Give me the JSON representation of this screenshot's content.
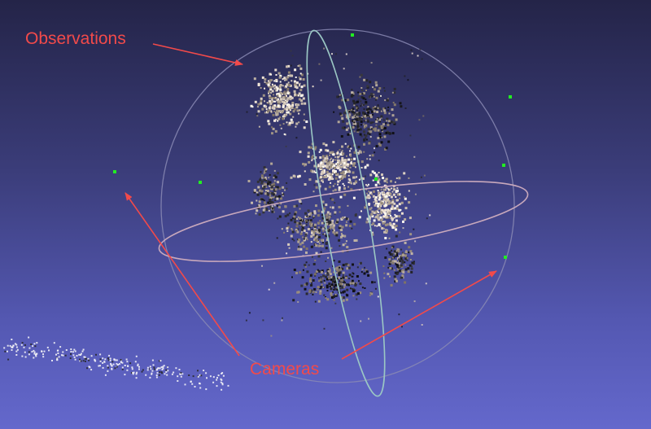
{
  "annotations": {
    "observations_label": "Observations",
    "cameras_label": "Cameras",
    "color": "#f24a4a"
  },
  "scene": {
    "background_top": "#242448",
    "background_bottom": "#6468cc",
    "camera_marker_color": "#22ee22",
    "trackball_color": "#8a8ab4",
    "horizontal_ring_color": "#c8a8bc",
    "vertical_ring_color": "#9bc7c4",
    "camera_count": 7
  }
}
